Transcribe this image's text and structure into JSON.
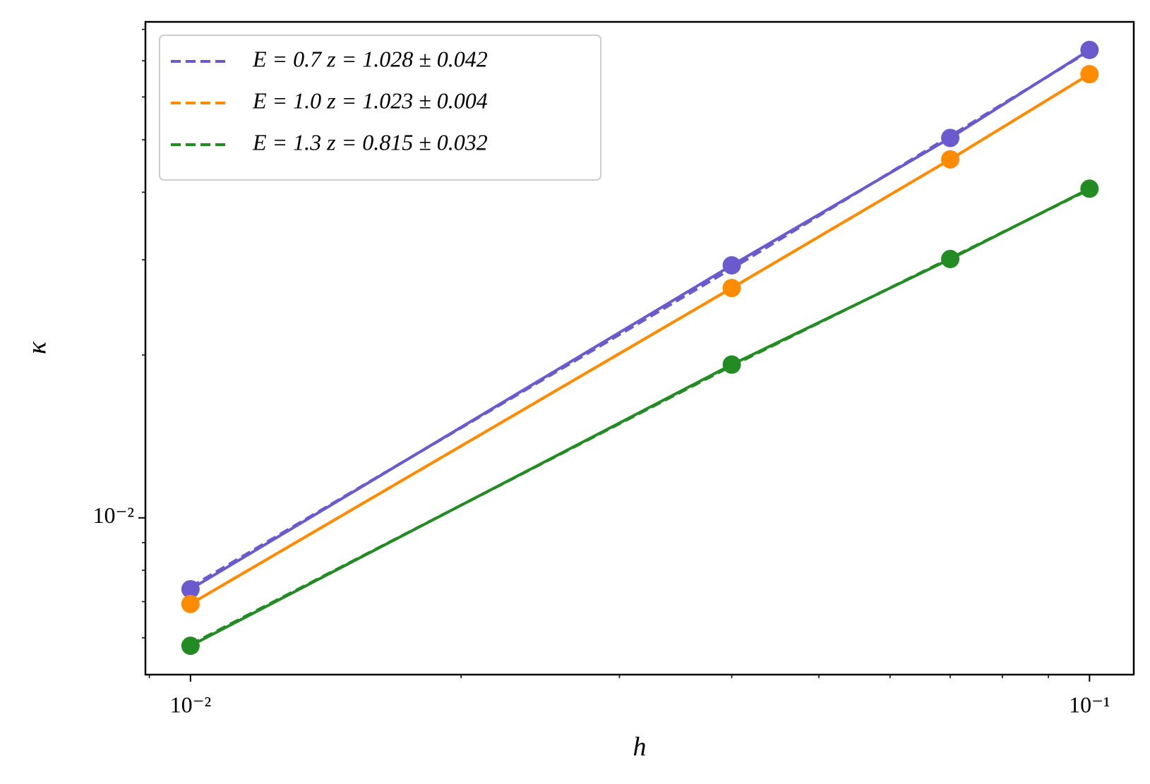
{
  "chart_data": {
    "type": "line",
    "xlabel": "h",
    "ylabel": "κ",
    "xscale": "log",
    "yscale": "log",
    "x": [
      0.01,
      0.04,
      0.07,
      0.1
    ],
    "series": [
      {
        "name": "E = 0.7 z = 1.028 ± 0.042",
        "color": "#6a5acd",
        "values": [
          0.00738,
          0.0293,
          0.0504,
          0.0733
        ],
        "fit": [
          0.00745,
          0.0289,
          0.0508,
          0.073
        ]
      },
      {
        "name": "E = 1.0 z = 1.023 ± 0.004",
        "color": "#ff8c00",
        "values": [
          0.00693,
          0.0266,
          0.046,
          0.0661
        ],
        "fit": [
          0.00693,
          0.0266,
          0.046,
          0.0661
        ]
      },
      {
        "name": "E = 1.3 z = 0.815 ± 0.032",
        "color": "#228b22",
        "values": [
          0.0058,
          0.0192,
          0.0301,
          0.0406
        ],
        "fit": [
          0.00583,
          0.0191,
          0.0302,
          0.0405
        ]
      }
    ],
    "xlim": [
      0.00891,
      0.112
    ],
    "ylim": [
      0.00513,
      0.0826
    ],
    "xticks": [
      {
        "value": 0.01,
        "label": "10⁻²"
      },
      {
        "value": 0.1,
        "label": "10⁻¹"
      }
    ],
    "yticks": [
      {
        "value": 0.01,
        "label": "10⁻²"
      }
    ],
    "xminorticks": [
      0.009,
      0.02,
      0.03,
      0.04,
      0.05,
      0.06,
      0.07,
      0.08,
      0.09
    ],
    "yminorticks": [
      0.006,
      0.007,
      0.008,
      0.009,
      0.02,
      0.03,
      0.04,
      0.05,
      0.06,
      0.07,
      0.08
    ],
    "legend": "upper left"
  }
}
